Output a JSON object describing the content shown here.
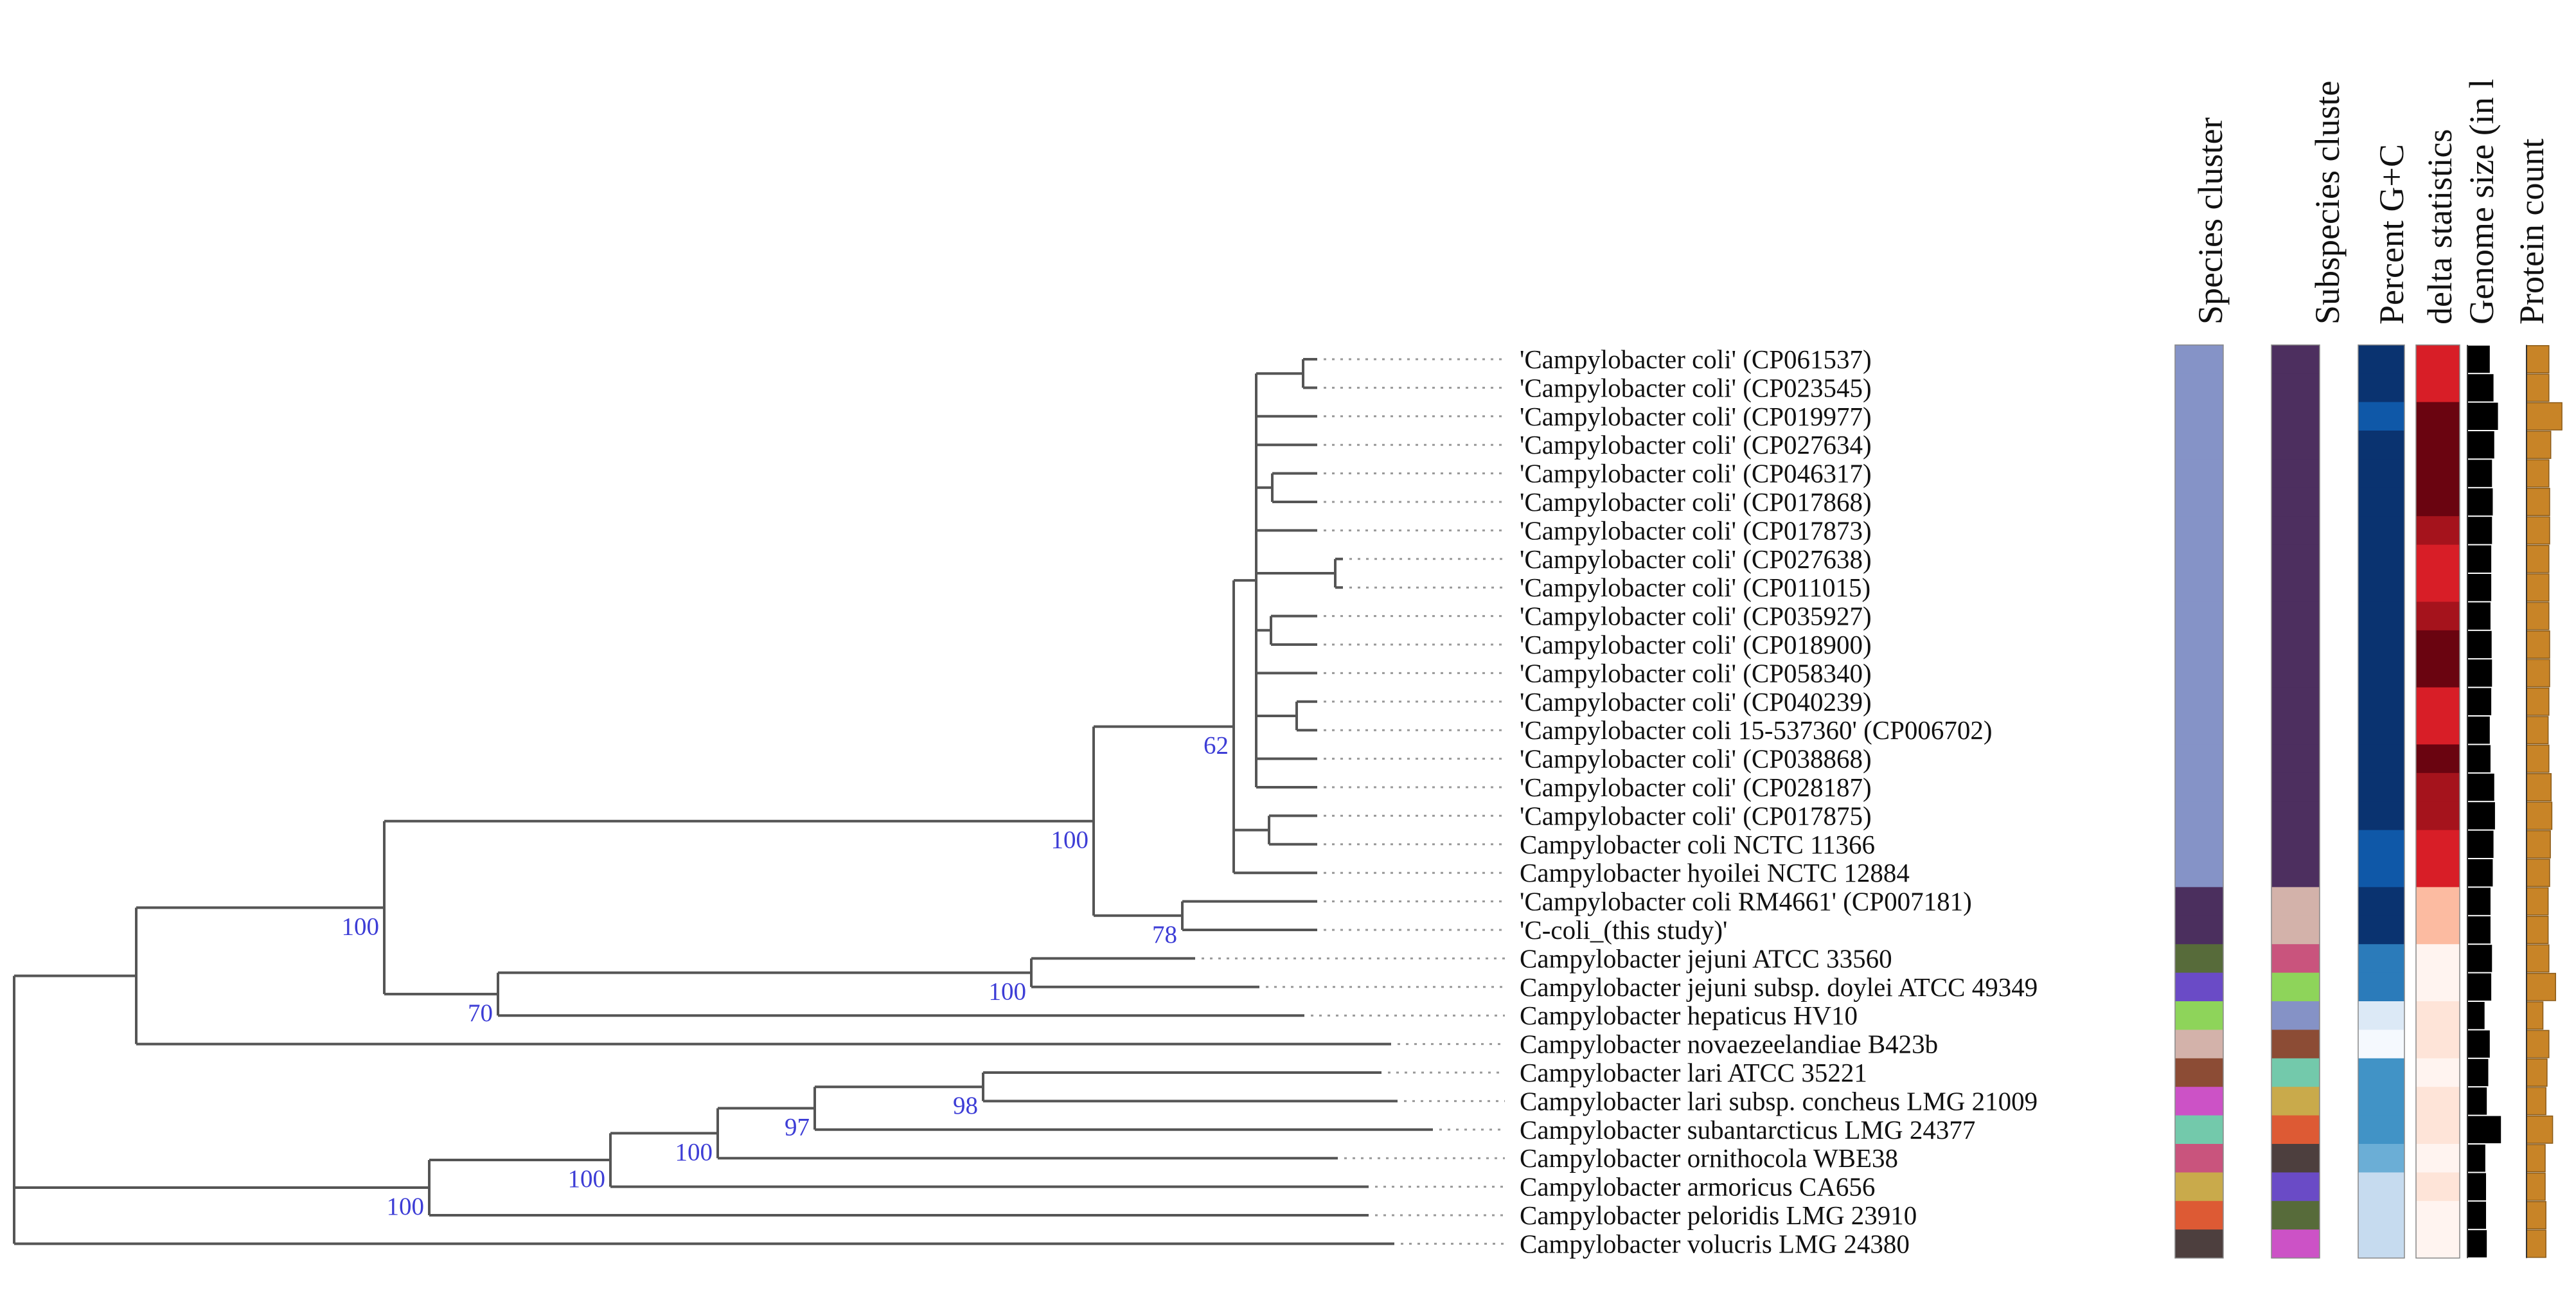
{
  "columns": [
    {
      "key": "species",
      "label": "Species cluster"
    },
    {
      "key": "subspecies",
      "label": "Subspecies cluste"
    },
    {
      "key": "gc",
      "label": "Percent G+C"
    },
    {
      "key": "delta",
      "label": "delta statistics"
    },
    {
      "key": "genome",
      "label": "Genome size (in l"
    },
    {
      "key": "protein",
      "label": "Protein count"
    }
  ],
  "leaves": [
    {
      "label": "'Campylobacter coli' (CP061537)",
      "species": "#8593c7",
      "subspecies": "#4d2f5f",
      "gc": "#0a3370",
      "delta": "#d81e27",
      "genome": 0.6,
      "protein": 0.6
    },
    {
      "label": "'Campylobacter coli' (CP023545)",
      "species": "#8593c7",
      "subspecies": "#4d2f5f",
      "gc": "#0a3370",
      "delta": "#d81e27",
      "genome": 0.7,
      "protein": 0.6
    },
    {
      "label": "'Campylobacter coli' (CP019977)",
      "species": "#8593c7",
      "subspecies": "#4d2f5f",
      "gc": "#0f58a8",
      "delta": "#6a0410",
      "genome": 0.82,
      "protein": 0.95
    },
    {
      "label": "'Campylobacter coli' (CP027634)",
      "species": "#8593c7",
      "subspecies": "#4d2f5f",
      "gc": "#0a3370",
      "delta": "#6a0410",
      "genome": 0.72,
      "protein": 0.65
    },
    {
      "label": "'Campylobacter coli' (CP046317)",
      "species": "#8593c7",
      "subspecies": "#4d2f5f",
      "gc": "#0a3370",
      "delta": "#6a0410",
      "genome": 0.66,
      "protein": 0.6
    },
    {
      "label": "'Campylobacter coli' (CP017868)",
      "species": "#8593c7",
      "subspecies": "#4d2f5f",
      "gc": "#0a3370",
      "delta": "#6a0410",
      "genome": 0.68,
      "protein": 0.62
    },
    {
      "label": "'Campylobacter coli' (CP017873)",
      "species": "#8593c7",
      "subspecies": "#4d2f5f",
      "gc": "#0a3370",
      "delta": "#a5131c",
      "genome": 0.66,
      "protein": 0.62
    },
    {
      "label": "'Campylobacter coli' (CP027638)",
      "species": "#8593c7",
      "subspecies": "#4d2f5f",
      "gc": "#0a3370",
      "delta": "#d81e27",
      "genome": 0.64,
      "protein": 0.6
    },
    {
      "label": "'Campylobacter coli' (CP011015)",
      "species": "#8593c7",
      "subspecies": "#4d2f5f",
      "gc": "#0a3370",
      "delta": "#d81e27",
      "genome": 0.64,
      "protein": 0.6
    },
    {
      "label": "'Campylobacter coli' (CP035927)",
      "species": "#8593c7",
      "subspecies": "#4d2f5f",
      "gc": "#0a3370",
      "delta": "#a5131c",
      "genome": 0.62,
      "protein": 0.6
    },
    {
      "label": "'Campylobacter coli' (CP018900)",
      "species": "#8593c7",
      "subspecies": "#4d2f5f",
      "gc": "#0a3370",
      "delta": "#6a0410",
      "genome": 0.65,
      "protein": 0.62
    },
    {
      "label": "'Campylobacter coli' (CP058340)",
      "species": "#8593c7",
      "subspecies": "#4d2f5f",
      "gc": "#0a3370",
      "delta": "#6a0410",
      "genome": 0.66,
      "protein": 0.62
    },
    {
      "label": "'Campylobacter coli' (CP040239)",
      "species": "#8593c7",
      "subspecies": "#4d2f5f",
      "gc": "#0a3370",
      "delta": "#d81e27",
      "genome": 0.64,
      "protein": 0.6
    },
    {
      "label": "'Campylobacter coli 15-537360' (CP006702)",
      "species": "#8593c7",
      "subspecies": "#4d2f5f",
      "gc": "#0a3370",
      "delta": "#d81e27",
      "genome": 0.6,
      "protein": 0.58
    },
    {
      "label": "'Campylobacter coli' (CP038868)",
      "species": "#8593c7",
      "subspecies": "#4d2f5f",
      "gc": "#0a3370",
      "delta": "#6a0410",
      "genome": 0.62,
      "protein": 0.6
    },
    {
      "label": "'Campylobacter coli' (CP028187)",
      "species": "#8593c7",
      "subspecies": "#4d2f5f",
      "gc": "#0a3370",
      "delta": "#a5131c",
      "genome": 0.72,
      "protein": 0.66
    },
    {
      "label": "'Campylobacter coli' (CP017875)",
      "species": "#8593c7",
      "subspecies": "#4d2f5f",
      "gc": "#0a3370",
      "delta": "#a5131c",
      "genome": 0.74,
      "protein": 0.68
    },
    {
      "label": "Campylobacter coli NCTC 11366",
      "species": "#8593c7",
      "subspecies": "#4d2f5f",
      "gc": "#0f58a8",
      "delta": "#d81e27",
      "genome": 0.7,
      "protein": 0.64
    },
    {
      "label": "Campylobacter hyoilei NCTC 12884",
      "species": "#8593c7",
      "subspecies": "#4d2f5f",
      "gc": "#0f58a8",
      "delta": "#d81e27",
      "genome": 0.68,
      "protein": 0.62
    },
    {
      "label": "'Campylobacter coli RM4661' (CP007181)",
      "species": "#4b2f5e",
      "subspecies": "#d3b2aa",
      "gc": "#0a3370",
      "delta": "#fcbba1",
      "genome": 0.62,
      "protein": 0.58
    },
    {
      "label": "'C-coli_(this study)'",
      "species": "#4b2f5e",
      "subspecies": "#d3b2aa",
      "gc": "#0a3370",
      "delta": "#fcbba1",
      "genome": 0.62,
      "protein": 0.58
    },
    {
      "label": "Campylobacter jejuni ATCC 33560",
      "species": "#576b3a",
      "subspecies": "#c9547d",
      "gc": "#2b7bba",
      "delta": "#fff4f0",
      "genome": 0.66,
      "protein": 0.6
    },
    {
      "label": "Campylobacter jejuni subsp. doylei ATCC 49349",
      "species": "#6a4bc6",
      "subspecies": "#8ed45a",
      "gc": "#2b7bba",
      "delta": "#fff4f0",
      "genome": 0.64,
      "protein": 0.78
    },
    {
      "label": "Campylobacter hepaticus HV10",
      "species": "#8ed45a",
      "subspecies": "#8592c6",
      "gc": "#dce9f6",
      "delta": "#fee4d8",
      "genome": 0.46,
      "protein": 0.44
    },
    {
      "label": "Campylobacter novaezeelandiae B423b",
      "species": "#d3b2aa",
      "subspecies": "#8c4c35",
      "gc": "#f5f9fe",
      "delta": "#fee4d8",
      "genome": 0.6,
      "protein": 0.6
    },
    {
      "label": "Campylobacter lari ATCC 35221",
      "species": "#8c4c35",
      "subspecies": "#73c9ab",
      "gc": "#4193c6",
      "delta": "#fff4f0",
      "genome": 0.56,
      "protein": 0.55
    },
    {
      "label": "Campylobacter lari subsp. concheus LMG 21009",
      "species": "#cc52c6",
      "subspecies": "#c9aa4b",
      "gc": "#4193c6",
      "delta": "#fee4d8",
      "genome": 0.52,
      "protein": 0.52
    },
    {
      "label": "Campylobacter subantarcticus LMG 24377",
      "species": "#73c9ab",
      "subspecies": "#dd5a34",
      "gc": "#4193c6",
      "delta": "#fee4d8",
      "genome": 0.9,
      "protein": 0.7
    },
    {
      "label": "Campylobacter ornithocola WBE38",
      "species": "#c9547d",
      "subspecies": "#4d3f3e",
      "gc": "#6baed6",
      "delta": "#fff4f0",
      "genome": 0.48,
      "protein": 0.5
    },
    {
      "label": "Campylobacter armoricus CA656",
      "species": "#c9aa4b",
      "subspecies": "#6a4bc6",
      "gc": "#c6dbef",
      "delta": "#fee4d8",
      "genome": 0.5,
      "protein": 0.5
    },
    {
      "label": "Campylobacter peloridis LMG 23910",
      "species": "#dd5a34",
      "subspecies": "#576b3a",
      "gc": "#c6dbef",
      "delta": "#fff4f0",
      "genome": 0.5,
      "protein": 0.52
    },
    {
      "label": "Campylobacter volucris LMG 24380",
      "species": "#4d3f3e",
      "subspecies": "#cc52c6",
      "gc": "#c6dbef",
      "delta": "#fff4f0",
      "genome": 0.52,
      "protein": 0.52
    }
  ],
  "tree": {
    "support": [
      {
        "label": "62",
        "node": "coli-core"
      },
      {
        "label": "100",
        "node": "coli-group"
      },
      {
        "label": "78",
        "node": "rm4661"
      },
      {
        "label": "100",
        "node": "jejuni-coli"
      },
      {
        "label": "100",
        "node": "jejuni-pair"
      },
      {
        "label": "70",
        "node": "jejuni-group"
      },
      {
        "label": "98",
        "node": "lari-pair"
      },
      {
        "label": "97",
        "node": "lari-sub"
      },
      {
        "label": "100",
        "node": "lari-orni"
      },
      {
        "label": "100",
        "node": "lari-arm"
      },
      {
        "label": "100",
        "node": "lari-group"
      }
    ]
  },
  "colors": {
    "genome_bar": "#000000",
    "protein_bar": "#c88427",
    "branch": "#555555",
    "bootstrap_text": "#3d3dd6"
  }
}
